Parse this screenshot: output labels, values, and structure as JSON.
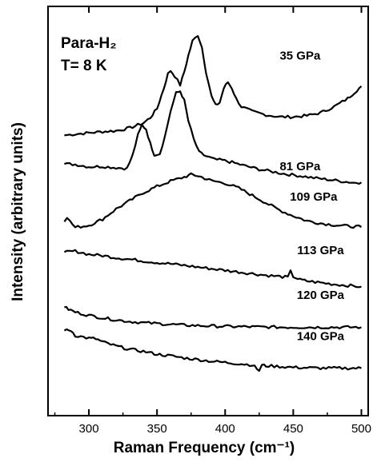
{
  "chart_data": {
    "type": "line",
    "xlabel": "Raman Frequency (cm⁻¹)",
    "ylabel": "Intensity (arbitrary units)",
    "xlim": [
      270,
      505
    ],
    "xticks": [
      300,
      350,
      400,
      450,
      500
    ],
    "ylim": [
      0,
      100
    ],
    "grid": false,
    "annotation_lines": [
      "Para-H₂",
      "T= 8 K"
    ],
    "series": [
      {
        "name": "35 GPa",
        "label_x": 455,
        "label_y": 87,
        "points": [
          [
            282,
            68.5
          ],
          [
            290,
            68.8
          ],
          [
            300,
            69.1
          ],
          [
            310,
            69.4
          ],
          [
            320,
            69.6
          ],
          [
            330,
            70.3
          ],
          [
            340,
            71.5
          ],
          [
            345,
            72.8
          ],
          [
            350,
            75.0
          ],
          [
            355,
            80.0
          ],
          [
            358,
            83.5
          ],
          [
            360,
            84.3
          ],
          [
            363,
            83.0
          ],
          [
            367,
            80.8
          ],
          [
            370,
            84.0
          ],
          [
            373,
            88.0
          ],
          [
            376,
            91.5
          ],
          [
            380,
            93.0
          ],
          [
            383,
            90.0
          ],
          [
            386,
            84.0
          ],
          [
            390,
            78.0
          ],
          [
            393,
            75.8
          ],
          [
            396,
            76.5
          ],
          [
            399,
            80.0
          ],
          [
            402,
            81.5
          ],
          [
            405,
            80.0
          ],
          [
            408,
            77.5
          ],
          [
            412,
            75.5
          ],
          [
            420,
            74.3
          ],
          [
            430,
            73.5
          ],
          [
            440,
            73.0
          ],
          [
            450,
            73.0
          ],
          [
            460,
            73.3
          ],
          [
            470,
            74.0
          ],
          [
            480,
            75.5
          ],
          [
            490,
            77.5
          ],
          [
            495,
            79.0
          ],
          [
            500,
            80.5
          ]
        ]
      },
      {
        "name": "81 GPa",
        "label_x": 455,
        "label_y": 60,
        "points": [
          [
            282,
            61.5
          ],
          [
            290,
            61.4
          ],
          [
            300,
            60.8
          ],
          [
            310,
            60.9
          ],
          [
            320,
            60.6
          ],
          [
            328,
            60.4
          ],
          [
            332,
            63.5
          ],
          [
            336,
            68.5
          ],
          [
            339,
            71.0
          ],
          [
            342,
            70.0
          ],
          [
            345,
            66.5
          ],
          [
            348,
            63.8
          ],
          [
            352,
            64.0
          ],
          [
            356,
            68.5
          ],
          [
            360,
            74.5
          ],
          [
            364,
            78.8
          ],
          [
            367,
            79.3
          ],
          [
            370,
            77.0
          ],
          [
            373,
            72.0
          ],
          [
            377,
            67.5
          ],
          [
            381,
            64.3
          ],
          [
            386,
            63.4
          ],
          [
            392,
            62.6
          ],
          [
            398,
            62.4
          ],
          [
            405,
            61.9
          ],
          [
            415,
            61.0
          ],
          [
            425,
            60.2
          ],
          [
            435,
            59.6
          ],
          [
            445,
            59.0
          ],
          [
            455,
            58.6
          ],
          [
            465,
            58.1
          ],
          [
            475,
            57.7
          ],
          [
            485,
            57.3
          ],
          [
            495,
            56.9
          ],
          [
            500,
            57.0
          ]
        ]
      },
      {
        "name": "109 GPa",
        "label_x": 465,
        "label_y": 52.5,
        "points": [
          [
            282,
            47.4
          ],
          [
            284,
            48.6
          ],
          [
            286,
            47.5
          ],
          [
            290,
            46.0
          ],
          [
            300,
            46.5
          ],
          [
            310,
            48.0
          ],
          [
            320,
            50.5
          ],
          [
            330,
            52.5
          ],
          [
            340,
            54.5
          ],
          [
            350,
            56.0
          ],
          [
            360,
            57.3
          ],
          [
            370,
            58.3
          ],
          [
            375,
            58.9
          ],
          [
            380,
            58.6
          ],
          [
            385,
            58.0
          ],
          [
            390,
            57.4
          ],
          [
            400,
            56.8
          ],
          [
            410,
            55.6
          ],
          [
            420,
            53.8
          ],
          [
            430,
            52.0
          ],
          [
            440,
            50.2
          ],
          [
            450,
            48.8
          ],
          [
            460,
            47.6
          ],
          [
            470,
            47.0
          ],
          [
            480,
            46.6
          ],
          [
            490,
            46.3
          ],
          [
            500,
            46.1
          ]
        ]
      },
      {
        "name": "113 GPa",
        "label_x": 470,
        "label_y": 39.5,
        "points": [
          [
            282,
            40.0
          ],
          [
            290,
            40.2
          ],
          [
            300,
            39.4
          ],
          [
            310,
            39.1
          ],
          [
            320,
            38.6
          ],
          [
            330,
            38.2
          ],
          [
            340,
            37.8
          ],
          [
            350,
            37.4
          ],
          [
            360,
            37.1
          ],
          [
            370,
            36.7
          ],
          [
            380,
            36.3
          ],
          [
            390,
            35.9
          ],
          [
            400,
            35.5
          ],
          [
            410,
            35.1
          ],
          [
            420,
            34.7
          ],
          [
            430,
            34.3
          ],
          [
            440,
            34.0
          ],
          [
            446,
            33.8
          ],
          [
            448,
            35.2
          ],
          [
            450,
            34.0
          ],
          [
            455,
            33.2
          ],
          [
            460,
            32.9
          ],
          [
            470,
            32.5
          ],
          [
            480,
            32.1
          ],
          [
            490,
            31.8
          ],
          [
            500,
            31.5
          ]
        ]
      },
      {
        "name": "120 GPa",
        "label_x": 470,
        "label_y": 28.5,
        "points": [
          [
            282,
            26.5
          ],
          [
            285,
            26.0
          ],
          [
            290,
            25.3
          ],
          [
            300,
            24.5
          ],
          [
            310,
            23.9
          ],
          [
            320,
            23.4
          ],
          [
            330,
            23.0
          ],
          [
            340,
            22.7
          ],
          [
            350,
            22.5
          ],
          [
            360,
            22.3
          ],
          [
            370,
            22.1
          ],
          [
            380,
            22.0
          ],
          [
            390,
            21.9
          ],
          [
            400,
            21.8
          ],
          [
            420,
            21.7
          ],
          [
            440,
            21.6
          ],
          [
            460,
            21.6
          ],
          [
            480,
            21.6
          ],
          [
            500,
            21.6
          ]
        ]
      },
      {
        "name": "140 GPa",
        "label_x": 470,
        "label_y": 18.5,
        "points": [
          [
            282,
            20.8
          ],
          [
            287,
            20.8
          ],
          [
            290,
            19.6
          ],
          [
            300,
            18.9
          ],
          [
            305,
            18.8
          ],
          [
            310,
            18.0
          ],
          [
            320,
            17.0
          ],
          [
            330,
            16.2
          ],
          [
            340,
            15.7
          ],
          [
            350,
            15.0
          ],
          [
            360,
            14.6
          ],
          [
            370,
            14.1
          ],
          [
            380,
            13.7
          ],
          [
            390,
            13.3
          ],
          [
            400,
            13.0
          ],
          [
            410,
            12.7
          ],
          [
            420,
            12.4
          ],
          [
            425,
            11.0
          ],
          [
            427,
            12.3
          ],
          [
            430,
            12.2
          ],
          [
            440,
            12.0
          ],
          [
            450,
            11.8
          ],
          [
            460,
            11.7
          ],
          [
            470,
            11.6
          ],
          [
            480,
            11.6
          ],
          [
            490,
            11.6
          ],
          [
            500,
            11.6
          ]
        ]
      }
    ]
  }
}
